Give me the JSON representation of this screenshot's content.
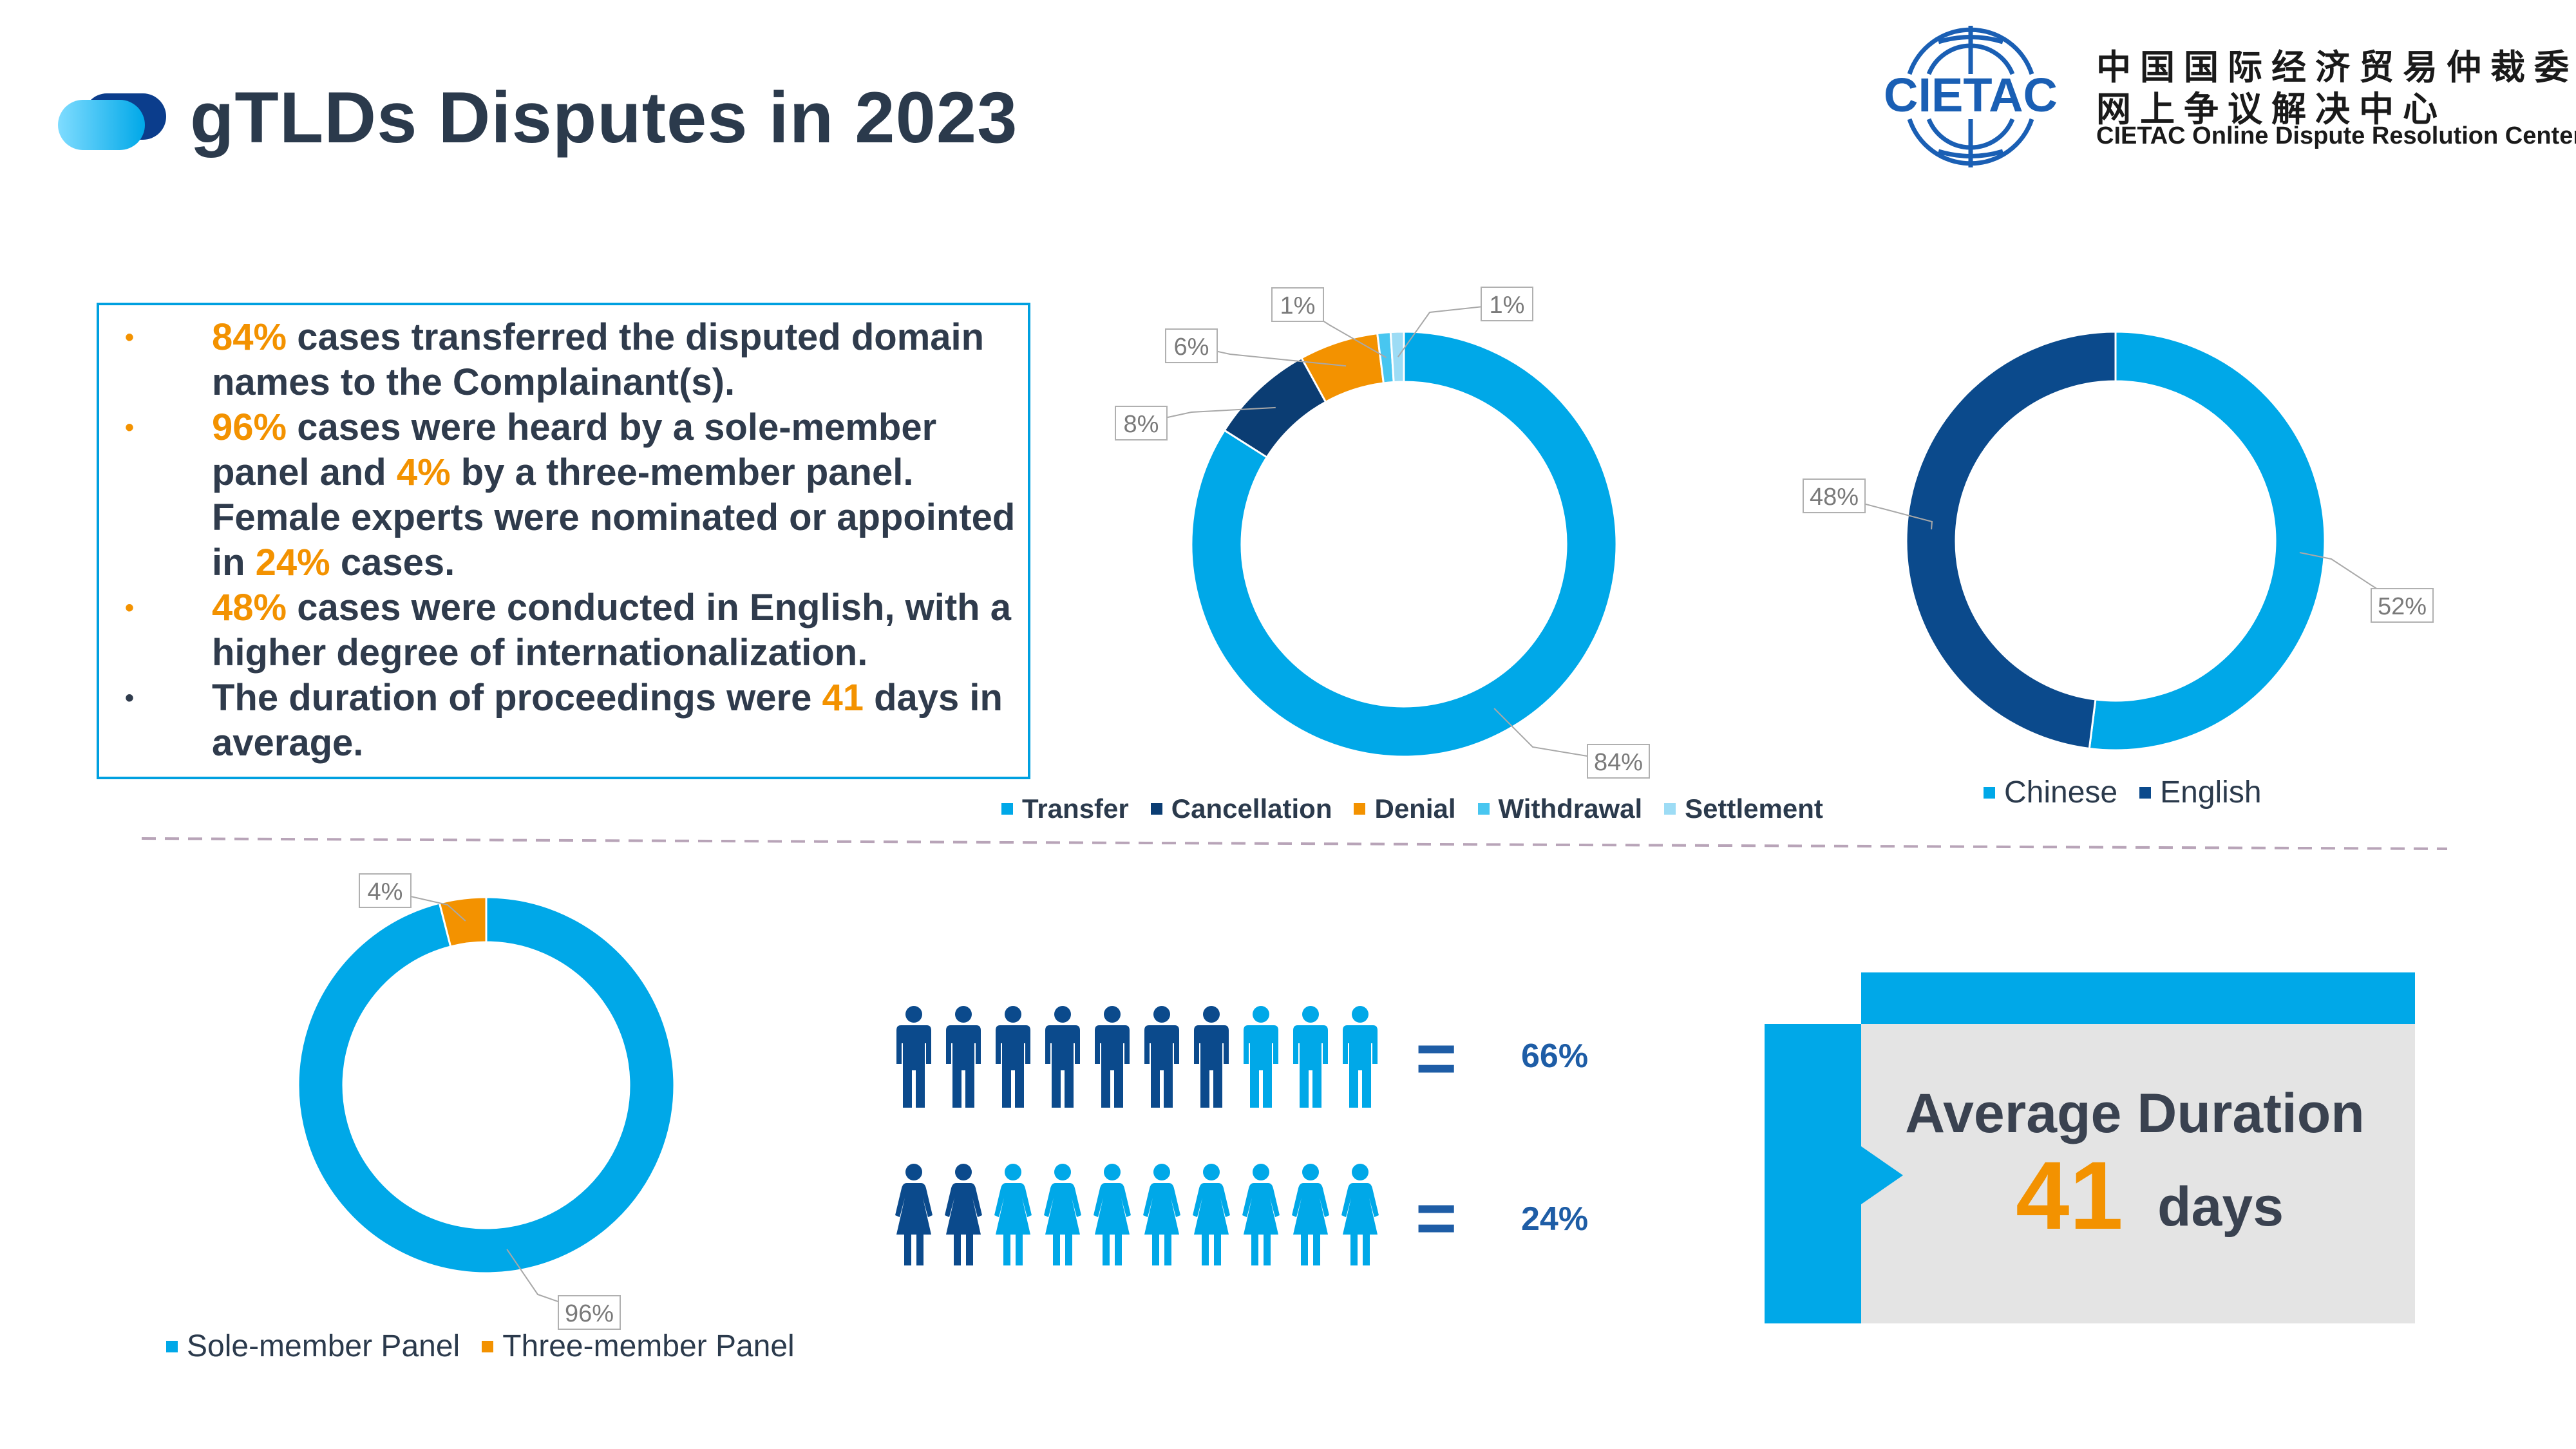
{
  "header": {
    "title": "gTLDs Disputes in 2023",
    "logo_text": "CIETAC",
    "org_cn_line1": "中国国际经济贸易仲裁委员会",
    "org_cn_line2": "网上争议解决中心",
    "org_en": "CIETAC Online Dispute Resolution Center"
  },
  "summary": {
    "items": [
      {
        "bullet": "orange",
        "parts": [
          {
            "text": "84%",
            "hl": true
          },
          {
            "text": " cases transferred the disputed domain names to the Complainant(s)."
          }
        ]
      },
      {
        "bullet": "orange",
        "parts": [
          {
            "text": "96%",
            "hl": true
          },
          {
            "text": " cases were heard by a sole-member panel and "
          },
          {
            "text": "4%",
            "hl": true
          },
          {
            "text": " by a three-member panel. Female experts were nominated or appointed in "
          },
          {
            "text": "24%",
            "hl": true
          },
          {
            "text": " cases."
          }
        ]
      },
      {
        "bullet": "orange",
        "parts": [
          {
            "text": "48%",
            "hl": true
          },
          {
            "text": " cases were conducted in English, with a higher degree of internationalization."
          }
        ]
      },
      {
        "bullet": "dark",
        "parts": [
          {
            "text": "The duration of proceedings were "
          },
          {
            "text": "41",
            "hl": true
          },
          {
            "text": " days in average."
          }
        ]
      }
    ]
  },
  "chart_data": [
    {
      "type": "pie",
      "donut": true,
      "categories": [
        "Transfer",
        "Cancellation",
        "Denial",
        "Withdrawal",
        "Settlement"
      ],
      "values": [
        84,
        8,
        6,
        1,
        1
      ],
      "labels": [
        "84%",
        "8%",
        "6%",
        "1%",
        "1%"
      ],
      "colors": [
        "#00a8e8",
        "#0b3d73",
        "#f39200",
        "#48c6f0",
        "#9ddcf5"
      ],
      "legend": "bottom"
    },
    {
      "type": "pie",
      "donut": true,
      "categories": [
        "Chinese",
        "English"
      ],
      "values": [
        52,
        48
      ],
      "labels": [
        "52%",
        "48%"
      ],
      "colors": [
        "#00a8e8",
        "#0b4a8c"
      ],
      "legend": "bottom"
    },
    {
      "type": "pie",
      "donut": true,
      "categories": [
        "Sole-member Panel",
        "Three-member Panel"
      ],
      "values": [
        96,
        4
      ],
      "labels": [
        "96%",
        "4%"
      ],
      "colors": [
        "#00a8e8",
        "#f39200"
      ],
      "legend": "bottom"
    }
  ],
  "pictograms": {
    "male": {
      "equals": "=",
      "label": "66%",
      "total": 10,
      "dark_count": 7,
      "colors": {
        "dark": "#0b4a8c",
        "light": "#00a8e8"
      },
      "icon": "male-person-icon"
    },
    "female": {
      "equals": "=",
      "label": "24%",
      "total": 10,
      "dark_count": 2,
      "colors": {
        "dark": "#0b4a8c",
        "light": "#00a8e8"
      },
      "icon": "female-person-icon"
    }
  },
  "duration": {
    "label": "Average Duration",
    "value": "41",
    "unit": "days"
  },
  "colors": {
    "accent_blue": "#00a8e8",
    "dark_blue": "#0b4a8c",
    "highlight_orange": "#f39200",
    "title": "#2b3a4c"
  }
}
